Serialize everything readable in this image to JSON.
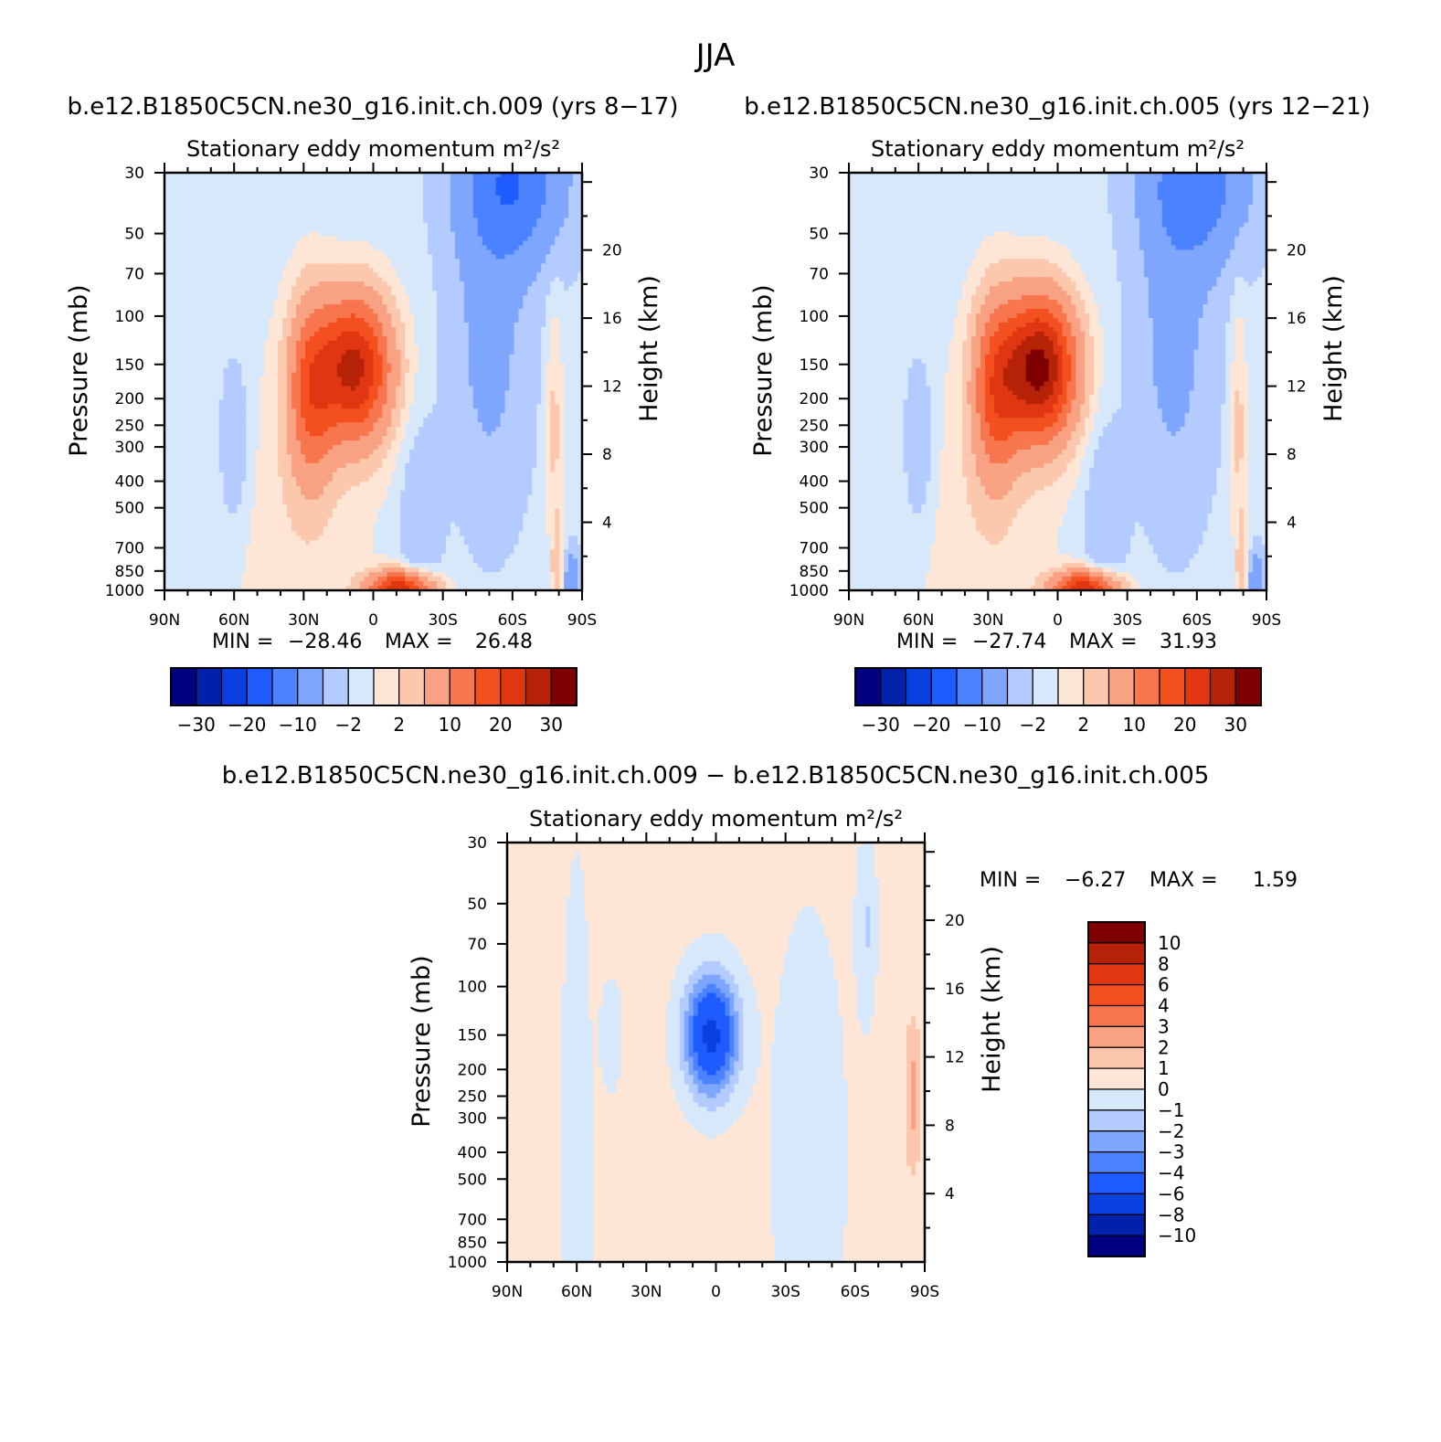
{
  "figure": {
    "title": "JJA"
  },
  "chart_data": [
    {
      "type": "heatmap",
      "title": "b.e12.B1850C5CN.ne30_g16.init.ch.009 (yrs 8-17)",
      "subtitle": "Stationary eddy momentum",
      "units": "m²/s²",
      "xlabel": "",
      "ylabel": "Pressure (mb)",
      "ylabel_right": "Height (km)",
      "x_ticks": [
        "90N",
        "60N",
        "30N",
        "0",
        "30S",
        "60S",
        "90S"
      ],
      "y_ticks": [
        "30",
        "50",
        "70",
        "100",
        "150",
        "200",
        "250",
        "300",
        "400",
        "500",
        "700",
        "850",
        "1000"
      ],
      "y_ticks_right": [
        "20",
        "16",
        "12",
        "8",
        "4"
      ],
      "ylim": [
        1000,
        30
      ],
      "xlim": [
        90,
        -90
      ],
      "min_label": "MIN =",
      "min_value": "-28.46",
      "max_label": "MAX =",
      "max_value": "26.48",
      "contour_levels": [
        -30,
        -25,
        -20,
        -15,
        -10,
        -5,
        -2,
        0,
        2,
        5,
        10,
        15,
        20,
        25,
        30
      ],
      "colorbar_labels": [
        "-30",
        "-20",
        "-10",
        "-2",
        "2",
        "10",
        "20",
        "30"
      ],
      "features": [
        {
          "lat": 8,
          "p": 150,
          "value": 26.48
        },
        {
          "lat": 27,
          "p": 180,
          "value": 15
        },
        {
          "lat": -60,
          "p": 35,
          "value": -15
        },
        {
          "lat": -15,
          "p": 980,
          "value": 20
        }
      ]
    },
    {
      "type": "heatmap",
      "title": "b.e12.B1850C5CN.ne30_g16.init.ch.005 (yrs 12-21)",
      "subtitle": "Stationary eddy momentum",
      "units": "m²/s²",
      "xlabel": "",
      "ylabel": "Pressure (mb)",
      "ylabel_right": "Height (km)",
      "x_ticks": [
        "90N",
        "60N",
        "30N",
        "0",
        "30S",
        "60S",
        "90S"
      ],
      "y_ticks": [
        "30",
        "50",
        "70",
        "100",
        "150",
        "200",
        "250",
        "300",
        "400",
        "500",
        "700",
        "850",
        "1000"
      ],
      "y_ticks_right": [
        "20",
        "16",
        "12",
        "8",
        "4"
      ],
      "ylim": [
        1000,
        30
      ],
      "xlim": [
        90,
        -90
      ],
      "min_label": "MIN =",
      "min_value": "-27.74",
      "max_label": "MAX =",
      "max_value": "31.93",
      "contour_levels": [
        -30,
        -25,
        -20,
        -15,
        -10,
        -5,
        -2,
        0,
        2,
        5,
        10,
        15,
        20,
        25,
        30
      ],
      "colorbar_labels": [
        "-30",
        "-20",
        "-10",
        "-2",
        "2",
        "10",
        "20",
        "30"
      ],
      "features": [
        {
          "lat": 8,
          "p": 150,
          "value": 31.93
        },
        {
          "lat": 27,
          "p": 180,
          "value": 15
        },
        {
          "lat": -60,
          "p": 35,
          "value": -12
        },
        {
          "lat": -15,
          "p": 980,
          "value": 18
        }
      ]
    },
    {
      "type": "heatmap",
      "title": "b.e12.B1850C5CN.ne30_g16.init.ch.009 - b.e12.B1850C5CN.ne30_g16.init.ch.005",
      "subtitle": "Stationary eddy momentum",
      "units": "m²/s²",
      "xlabel": "",
      "ylabel": "Pressure (mb)",
      "ylabel_right": "Height (km)",
      "x_ticks": [
        "90N",
        "60N",
        "30N",
        "0",
        "30S",
        "60S",
        "90S"
      ],
      "y_ticks": [
        "30",
        "50",
        "70",
        "100",
        "150",
        "200",
        "250",
        "300",
        "400",
        "500",
        "700",
        "850",
        "1000"
      ],
      "y_ticks_right": [
        "20",
        "16",
        "12",
        "8",
        "4"
      ],
      "ylim": [
        1000,
        30
      ],
      "xlim": [
        90,
        -90
      ],
      "min_label": "MIN =",
      "min_value": "-6.27",
      "max_label": "MAX =",
      "max_value": "1.59",
      "contour_levels": [
        -10,
        -8,
        -6,
        -4,
        -3,
        -2,
        -1,
        0,
        1,
        2,
        3,
        4,
        6,
        8,
        10
      ],
      "colorbar_labels": [
        "10",
        "8",
        "6",
        "4",
        "3",
        "2",
        "1",
        "0",
        "-1",
        "-2",
        "-3",
        "-4",
        "-6",
        "-8",
        "-10"
      ],
      "features": [
        {
          "lat": 2,
          "p": 150,
          "value": -6.27
        },
        {
          "lat": -85,
          "p": 250,
          "value": 1.59
        }
      ]
    }
  ],
  "colors": {
    "palette": [
      "#000080",
      "#0022aa",
      "#0a3fe0",
      "#1e5cff",
      "#4a82ff",
      "#7fa6ff",
      "#b3cbff",
      "#d8e8fb",
      "#fde6d6",
      "#fcc8ad",
      "#f9a283",
      "#f8764d",
      "#f4501f",
      "#e03712",
      "#b52208",
      "#7f0000"
    ]
  }
}
